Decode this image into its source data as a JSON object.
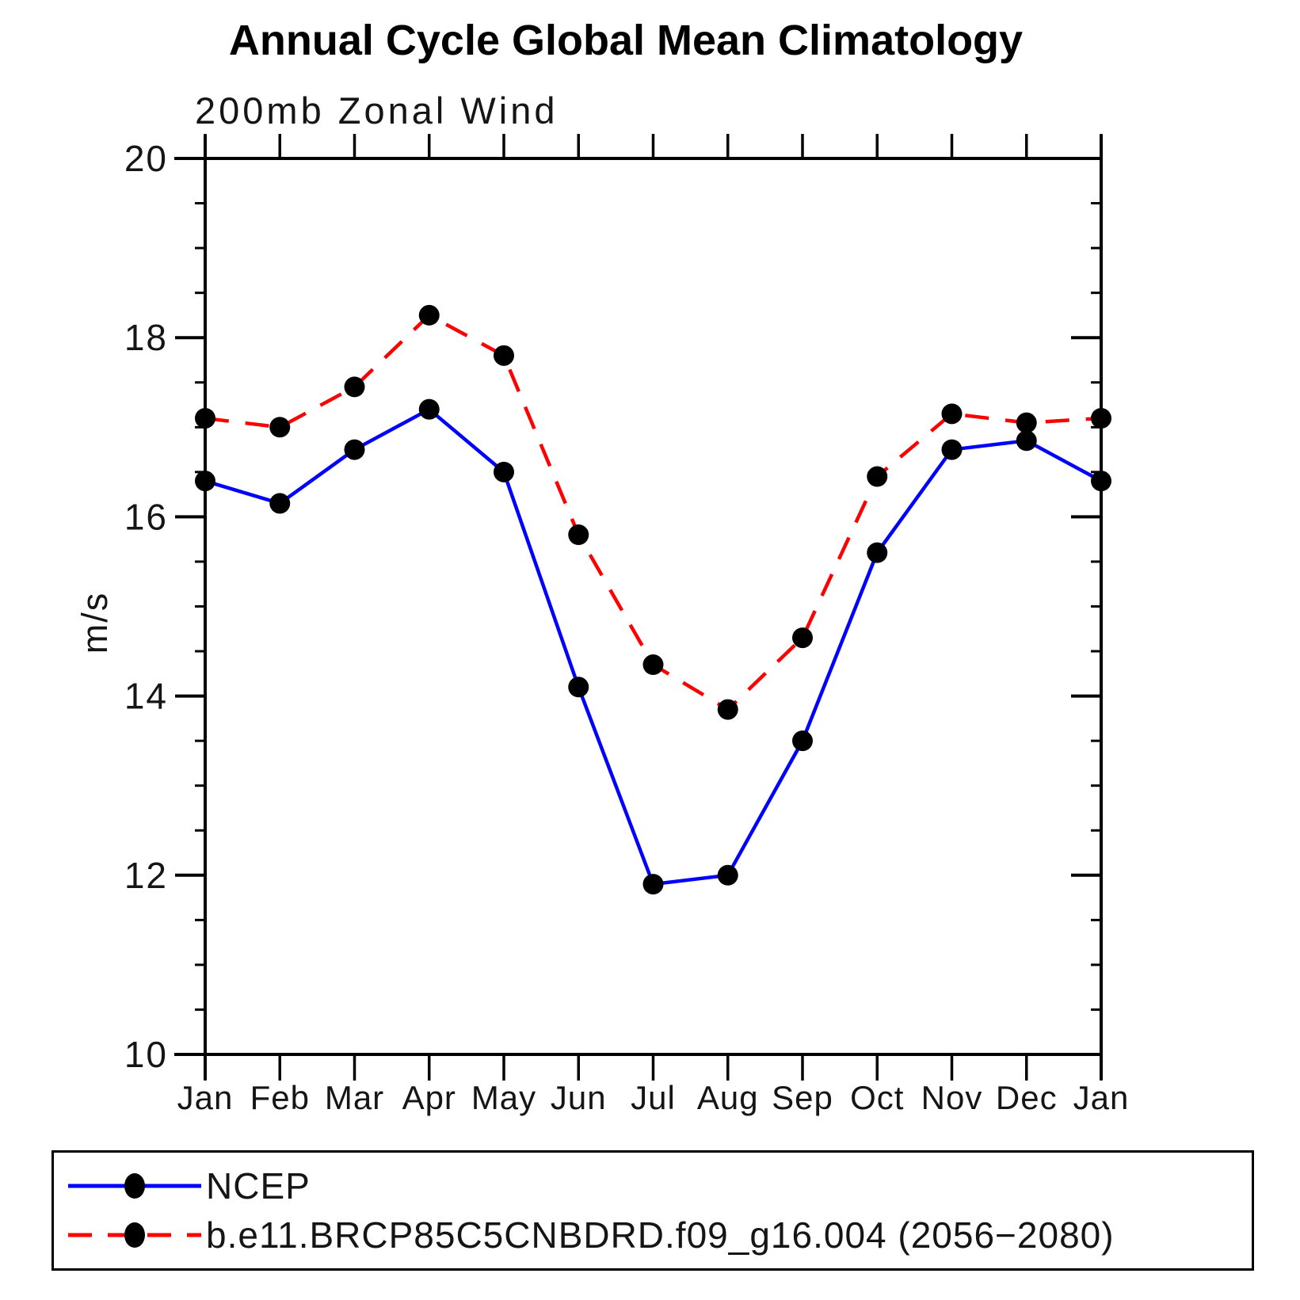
{
  "chart_data": {
    "type": "line",
    "title": "Annual Cycle Global Mean Climatology",
    "subtitle": "200mb Zonal Wind",
    "ylabel": "m/s",
    "categories": [
      "Jan",
      "Feb",
      "Mar",
      "Apr",
      "May",
      "Jun",
      "Jul",
      "Aug",
      "Sep",
      "Oct",
      "Nov",
      "Dec",
      "Jan"
    ],
    "ylim": [
      10,
      20
    ],
    "yticks": [
      10,
      12,
      14,
      16,
      18,
      20
    ],
    "ytick_minor_step": 0.5,
    "grid": false,
    "legend_position": "bottom-box",
    "axis_color": "#000000",
    "marker_color": "#000000",
    "series": [
      {
        "name": "NCEP",
        "color": "#0000ff",
        "style": "solid",
        "marker": "circle",
        "values": [
          16.4,
          16.15,
          16.75,
          17.2,
          16.5,
          14.1,
          11.9,
          12.0,
          13.5,
          15.6,
          16.75,
          16.85,
          16.4
        ]
      },
      {
        "name": "b.e11.BRCP85C5CNBDRD.f09_g16.004 (2056−2080)",
        "color": "#ff0000",
        "style": "dashed",
        "marker": "circle",
        "values": [
          17.1,
          17.0,
          17.45,
          18.25,
          17.8,
          15.8,
          14.35,
          13.85,
          14.65,
          16.45,
          17.15,
          17.05,
          17.1
        ]
      }
    ]
  }
}
